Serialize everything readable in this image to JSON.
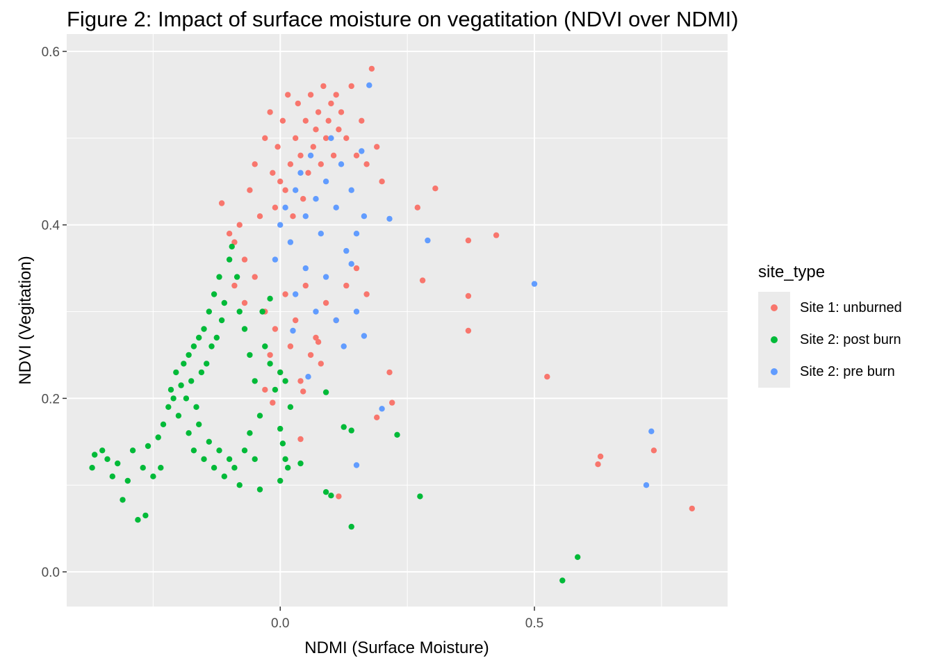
{
  "chart_data": {
    "type": "scatter",
    "title": "Figure 2: Impact of surface moisture on vegatitation (NDVI over NDMI)",
    "xlabel": "NDMI (Surface Moisture)",
    "ylabel": "NDVI (Vegitation)",
    "xlim": [
      -0.42,
      0.88
    ],
    "ylim": [
      -0.04,
      0.62
    ],
    "xticks": [
      0.0,
      0.5
    ],
    "xtick_labels": [
      "0.0",
      "0.5"
    ],
    "yticks": [
      0.0,
      0.2,
      0.4,
      0.6
    ],
    "ytick_labels": [
      "0.0",
      "0.2",
      "0.4",
      "0.6"
    ],
    "grid": true,
    "legend_title": "site_type",
    "legend_position": "right",
    "series": [
      {
        "name": "Site 1: unburned",
        "color": "#F8766D",
        "points": [
          [
            -0.115,
            0.425
          ],
          [
            -0.1,
            0.39
          ],
          [
            -0.09,
            0.38
          ],
          [
            -0.08,
            0.4
          ],
          [
            -0.07,
            0.36
          ],
          [
            -0.06,
            0.44
          ],
          [
            -0.05,
            0.47
          ],
          [
            -0.04,
            0.41
          ],
          [
            -0.03,
            0.5
          ],
          [
            -0.02,
            0.53
          ],
          [
            -0.015,
            0.46
          ],
          [
            -0.01,
            0.42
          ],
          [
            -0.005,
            0.49
          ],
          [
            0.0,
            0.45
          ],
          [
            0.005,
            0.52
          ],
          [
            0.01,
            0.44
          ],
          [
            0.015,
            0.55
          ],
          [
            0.02,
            0.47
          ],
          [
            0.025,
            0.41
          ],
          [
            0.03,
            0.5
          ],
          [
            0.035,
            0.54
          ],
          [
            0.04,
            0.48
          ],
          [
            0.045,
            0.43
          ],
          [
            0.05,
            0.52
          ],
          [
            0.055,
            0.46
          ],
          [
            0.06,
            0.55
          ],
          [
            0.065,
            0.49
          ],
          [
            0.07,
            0.51
          ],
          [
            0.075,
            0.53
          ],
          [
            0.08,
            0.47
          ],
          [
            0.085,
            0.56
          ],
          [
            0.09,
            0.5
          ],
          [
            0.095,
            0.52
          ],
          [
            0.1,
            0.54
          ],
          [
            0.105,
            0.48
          ],
          [
            0.11,
            0.55
          ],
          [
            0.115,
            0.51
          ],
          [
            0.12,
            0.53
          ],
          [
            0.13,
            0.5
          ],
          [
            0.14,
            0.56
          ],
          [
            0.15,
            0.48
          ],
          [
            0.16,
            0.52
          ],
          [
            0.17,
            0.47
          ],
          [
            0.18,
            0.58
          ],
          [
            0.19,
            0.49
          ],
          [
            0.2,
            0.45
          ],
          [
            -0.09,
            0.33
          ],
          [
            -0.07,
            0.31
          ],
          [
            -0.05,
            0.34
          ],
          [
            -0.03,
            0.3
          ],
          [
            -0.01,
            0.28
          ],
          [
            0.01,
            0.32
          ],
          [
            0.03,
            0.29
          ],
          [
            0.05,
            0.33
          ],
          [
            0.07,
            0.27
          ],
          [
            0.09,
            0.31
          ],
          [
            0.11,
            0.29
          ],
          [
            0.13,
            0.33
          ],
          [
            0.15,
            0.35
          ],
          [
            0.17,
            0.32
          ],
          [
            -0.02,
            0.25
          ],
          [
            0.0,
            0.23
          ],
          [
            0.02,
            0.26
          ],
          [
            0.04,
            0.22
          ],
          [
            0.06,
            0.25
          ],
          [
            0.08,
            0.24
          ],
          [
            -0.03,
            0.21
          ],
          [
            -0.015,
            0.195
          ],
          [
            0.045,
            0.208
          ],
          [
            0.075,
            0.265
          ],
          [
            0.115,
            0.087
          ],
          [
            0.19,
            0.178
          ],
          [
            0.215,
            0.23
          ],
          [
            0.22,
            0.195
          ],
          [
            0.27,
            0.42
          ],
          [
            0.28,
            0.336
          ],
          [
            0.305,
            0.442
          ],
          [
            0.37,
            0.382
          ],
          [
            0.37,
            0.318
          ],
          [
            0.37,
            0.278
          ],
          [
            0.425,
            0.388
          ],
          [
            0.525,
            0.225
          ],
          [
            0.625,
            0.124
          ],
          [
            0.63,
            0.133
          ],
          [
            0.735,
            0.14
          ],
          [
            0.81,
            0.073
          ],
          [
            0.04,
            0.153
          ]
        ]
      },
      {
        "name": "Site 2: post burn",
        "color": "#00BA38",
        "points": [
          [
            -0.37,
            0.12
          ],
          [
            -0.365,
            0.135
          ],
          [
            -0.35,
            0.14
          ],
          [
            -0.34,
            0.13
          ],
          [
            -0.33,
            0.11
          ],
          [
            -0.32,
            0.125
          ],
          [
            -0.31,
            0.083
          ],
          [
            -0.3,
            0.105
          ],
          [
            -0.29,
            0.14
          ],
          [
            -0.28,
            0.06
          ],
          [
            -0.27,
            0.12
          ],
          [
            -0.265,
            0.065
          ],
          [
            -0.26,
            0.145
          ],
          [
            -0.25,
            0.11
          ],
          [
            -0.24,
            0.155
          ],
          [
            -0.235,
            0.12
          ],
          [
            -0.23,
            0.17
          ],
          [
            -0.22,
            0.19
          ],
          [
            -0.215,
            0.21
          ],
          [
            -0.21,
            0.2
          ],
          [
            -0.205,
            0.23
          ],
          [
            -0.2,
            0.18
          ],
          [
            -0.195,
            0.215
          ],
          [
            -0.19,
            0.24
          ],
          [
            -0.185,
            0.2
          ],
          [
            -0.18,
            0.25
          ],
          [
            -0.175,
            0.22
          ],
          [
            -0.17,
            0.26
          ],
          [
            -0.165,
            0.19
          ],
          [
            -0.16,
            0.27
          ],
          [
            -0.155,
            0.23
          ],
          [
            -0.15,
            0.28
          ],
          [
            -0.145,
            0.24
          ],
          [
            -0.14,
            0.3
          ],
          [
            -0.135,
            0.26
          ],
          [
            -0.13,
            0.32
          ],
          [
            -0.125,
            0.27
          ],
          [
            -0.12,
            0.34
          ],
          [
            -0.115,
            0.29
          ],
          [
            -0.11,
            0.31
          ],
          [
            -0.1,
            0.36
          ],
          [
            -0.095,
            0.375
          ],
          [
            -0.085,
            0.34
          ],
          [
            -0.08,
            0.3
          ],
          [
            -0.07,
            0.28
          ],
          [
            -0.06,
            0.25
          ],
          [
            -0.05,
            0.22
          ],
          [
            -0.04,
            0.18
          ],
          [
            -0.03,
            0.26
          ],
          [
            -0.02,
            0.24
          ],
          [
            -0.01,
            0.21
          ],
          [
            0.0,
            0.23
          ],
          [
            0.01,
            0.22
          ],
          [
            0.02,
            0.19
          ],
          [
            -0.18,
            0.16
          ],
          [
            -0.17,
            0.14
          ],
          [
            -0.16,
            0.17
          ],
          [
            -0.15,
            0.13
          ],
          [
            -0.14,
            0.15
          ],
          [
            -0.13,
            0.12
          ],
          [
            -0.12,
            0.14
          ],
          [
            -0.11,
            0.11
          ],
          [
            -0.1,
            0.13
          ],
          [
            -0.09,
            0.12
          ],
          [
            -0.08,
            0.1
          ],
          [
            -0.07,
            0.14
          ],
          [
            -0.06,
            0.16
          ],
          [
            -0.05,
            0.13
          ],
          [
            -0.04,
            0.095
          ],
          [
            0.0,
            0.165
          ],
          [
            0.005,
            0.148
          ],
          [
            0.01,
            0.13
          ],
          [
            0.015,
            0.12
          ],
          [
            0.04,
            0.125
          ],
          [
            0.09,
            0.207
          ],
          [
            0.09,
            0.092
          ],
          [
            0.1,
            0.088
          ],
          [
            0.125,
            0.167
          ],
          [
            0.14,
            0.163
          ],
          [
            0.14,
            0.052
          ],
          [
            0.23,
            0.158
          ],
          [
            0.275,
            0.087
          ],
          [
            0.585,
            0.017
          ],
          [
            0.555,
            -0.01
          ],
          [
            -0.0,
            0.105
          ],
          [
            -0.02,
            0.315
          ],
          [
            -0.035,
            0.3
          ]
        ]
      },
      {
        "name": "Site 2: pre burn",
        "color": "#619CFF",
        "points": [
          [
            -0.01,
            0.36
          ],
          [
            0.0,
            0.4
          ],
          [
            0.01,
            0.42
          ],
          [
            0.02,
            0.38
          ],
          [
            0.03,
            0.44
          ],
          [
            0.04,
            0.46
          ],
          [
            0.05,
            0.41
          ],
          [
            0.06,
            0.48
          ],
          [
            0.07,
            0.43
          ],
          [
            0.08,
            0.39
          ],
          [
            0.09,
            0.45
          ],
          [
            0.1,
            0.5
          ],
          [
            0.11,
            0.42
          ],
          [
            0.12,
            0.47
          ],
          [
            0.13,
            0.37
          ],
          [
            0.14,
            0.44
          ],
          [
            0.15,
            0.39
          ],
          [
            0.16,
            0.485
          ],
          [
            0.165,
            0.41
          ],
          [
            0.175,
            0.561
          ],
          [
            0.03,
            0.32
          ],
          [
            0.05,
            0.35
          ],
          [
            0.07,
            0.3
          ],
          [
            0.09,
            0.34
          ],
          [
            0.11,
            0.29
          ],
          [
            0.125,
            0.26
          ],
          [
            0.14,
            0.355
          ],
          [
            0.15,
            0.3
          ],
          [
            0.165,
            0.272
          ],
          [
            0.215,
            0.407
          ],
          [
            0.29,
            0.382
          ],
          [
            0.5,
            0.332
          ],
          [
            0.2,
            0.188
          ],
          [
            0.15,
            0.123
          ],
          [
            0.055,
            0.225
          ],
          [
            0.025,
            0.278
          ],
          [
            0.72,
            0.1
          ],
          [
            0.73,
            0.162
          ]
        ]
      }
    ]
  }
}
